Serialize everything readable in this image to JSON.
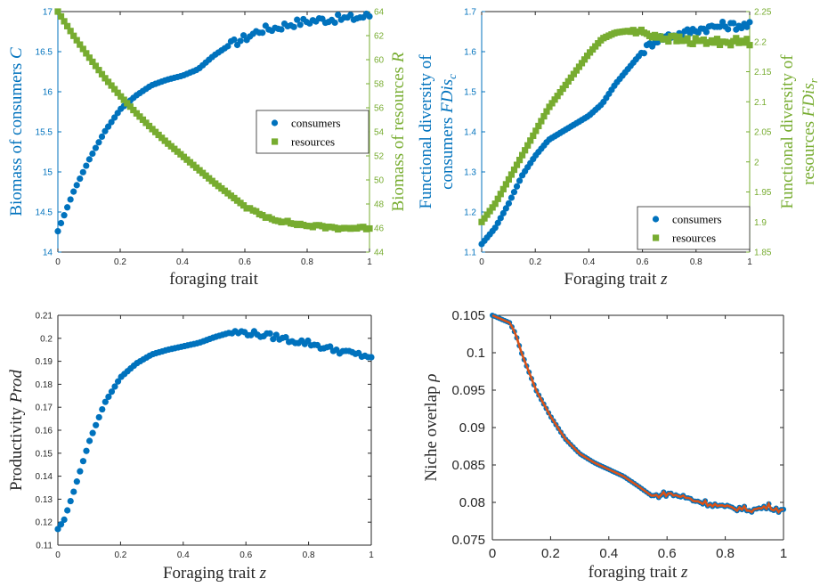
{
  "colors": {
    "consumers": "#0072BD",
    "resources": "#77AC30",
    "overlap_line": "#D95319",
    "axis_dark": "#262626"
  },
  "chart_data": [
    {
      "id": "biomass",
      "type": "scatter",
      "xlabel": "foraging trait",
      "ylabel_left": "Biomass of consumers C",
      "ylabel_right": "Biomass of resources R",
      "xlim": [
        0,
        1
      ],
      "ylim_left": [
        14,
        17
      ],
      "ylim_right": [
        44,
        64
      ],
      "x_ticks": [
        "0",
        "0.2",
        "0.4",
        "0.6",
        "0.8",
        "1"
      ],
      "y_ticks_left": [
        "14",
        "14.5",
        "15",
        "15.5",
        "16",
        "16.5",
        "17"
      ],
      "y_ticks_right": [
        "44",
        "46",
        "48",
        "50",
        "52",
        "54",
        "56",
        "58",
        "60",
        "62",
        "64"
      ],
      "legend": {
        "position": "right-middle",
        "entries": [
          "consumers",
          "resources"
        ]
      },
      "series": [
        {
          "name": "consumers",
          "axis": "left",
          "marker": "circle",
          "keypoints": [
            [
              0,
              14.26
            ],
            [
              0.01,
              14.36
            ],
            [
              0.05,
              14.75
            ],
            [
              0.1,
              15.15
            ],
            [
              0.15,
              15.5
            ],
            [
              0.2,
              15.78
            ],
            [
              0.25,
              15.95
            ],
            [
              0.3,
              16.08
            ],
            [
              0.35,
              16.15
            ],
            [
              0.4,
              16.2
            ],
            [
              0.45,
              16.28
            ],
            [
              0.5,
              16.45
            ],
            [
              0.55,
              16.58
            ],
            [
              0.6,
              16.67
            ],
            [
              0.65,
              16.77
            ],
            [
              0.7,
              16.8
            ],
            [
              0.75,
              16.85
            ],
            [
              0.8,
              16.88
            ],
            [
              0.85,
              16.9
            ],
            [
              0.9,
              16.91
            ],
            [
              0.95,
              16.92
            ],
            [
              1,
              16.95
            ]
          ],
          "noise": 0.05,
          "noise_from": 0.55
        },
        {
          "name": "resources",
          "axis": "right",
          "marker": "square",
          "keypoints": [
            [
              0,
              64
            ],
            [
              0.05,
              62
            ],
            [
              0.1,
              60.2
            ],
            [
              0.15,
              58.5
            ],
            [
              0.2,
              57
            ],
            [
              0.25,
              55.6
            ],
            [
              0.3,
              54.3
            ],
            [
              0.35,
              53.1
            ],
            [
              0.4,
              52
            ],
            [
              0.45,
              50.9
            ],
            [
              0.5,
              49.8
            ],
            [
              0.55,
              48.8
            ],
            [
              0.6,
              47.8
            ],
            [
              0.65,
              47.1
            ],
            [
              0.7,
              46.7
            ],
            [
              0.75,
              46.4
            ],
            [
              0.8,
              46.2
            ],
            [
              0.85,
              46.1
            ],
            [
              0.9,
              46
            ],
            [
              1,
              46
            ]
          ],
          "noise": 0.12,
          "noise_from": 0.6
        }
      ]
    },
    {
      "id": "functional-diversity",
      "type": "scatter",
      "xlabel": "Foraging trait z",
      "ylabel_left": [
        "Functional diversity of",
        "consumers FDis_c"
      ],
      "ylabel_right": [
        "Functional diversity of",
        "resources FDis_r"
      ],
      "xlim": [
        0,
        1
      ],
      "ylim_left": [
        1.1,
        1.7
      ],
      "ylim_right": [
        1.85,
        2.25
      ],
      "x_ticks": [
        "0",
        "0.2",
        "0.4",
        "0.6",
        "0.8",
        "1"
      ],
      "y_ticks_left": [
        "1.1",
        "1.2",
        "1.3",
        "1.4",
        "1.5",
        "1.6",
        "1.7"
      ],
      "y_ticks_right": [
        "1.85",
        "1.9",
        "1.95",
        "2",
        "2.05",
        "2.1",
        "2.15",
        "2.2",
        "2.25"
      ],
      "legend": {
        "position": "bottom-right",
        "entries": [
          "consumers",
          "resources"
        ]
      },
      "series": [
        {
          "name": "consumers",
          "axis": "left",
          "marker": "circle",
          "keypoints": [
            [
              0,
              1.12
            ],
            [
              0.05,
              1.16
            ],
            [
              0.1,
              1.22
            ],
            [
              0.15,
              1.29
            ],
            [
              0.2,
              1.34
            ],
            [
              0.25,
              1.38
            ],
            [
              0.3,
              1.4
            ],
            [
              0.35,
              1.42
            ],
            [
              0.4,
              1.44
            ],
            [
              0.45,
              1.47
            ],
            [
              0.5,
              1.52
            ],
            [
              0.55,
              1.56
            ],
            [
              0.6,
              1.6
            ],
            [
              0.65,
              1.63
            ],
            [
              0.7,
              1.64
            ],
            [
              0.75,
              1.645
            ],
            [
              0.8,
              1.655
            ],
            [
              0.85,
              1.66
            ],
            [
              0.9,
              1.665
            ],
            [
              1,
              1.665
            ]
          ],
          "noise": 0.01,
          "noise_from": 0.6
        },
        {
          "name": "resources",
          "axis": "right",
          "marker": "square",
          "keypoints": [
            [
              0,
              1.9
            ],
            [
              0.05,
              1.93
            ],
            [
              0.1,
              1.97
            ],
            [
              0.15,
              2.01
            ],
            [
              0.2,
              2.05
            ],
            [
              0.25,
              2.09
            ],
            [
              0.3,
              2.12
            ],
            [
              0.35,
              2.15
            ],
            [
              0.4,
              2.18
            ],
            [
              0.45,
              2.205
            ],
            [
              0.5,
              2.215
            ],
            [
              0.55,
              2.218
            ],
            [
              0.6,
              2.215
            ],
            [
              0.65,
              2.21
            ],
            [
              0.7,
              2.205
            ],
            [
              0.8,
              2.2
            ],
            [
              0.9,
              2.2
            ],
            [
              1,
              2.2
            ]
          ],
          "noise": 0.006,
          "noise_from": 0.55
        }
      ]
    },
    {
      "id": "productivity",
      "type": "scatter",
      "xlabel": "Foraging trait z",
      "ylabel_left": "Productivity Prod",
      "xlim": [
        0,
        1
      ],
      "ylim_left": [
        0.11,
        0.21
      ],
      "x_ticks": [
        "0",
        "0.2",
        "0.4",
        "0.6",
        "0.8",
        "1"
      ],
      "y_ticks_left": [
        "0.11",
        "0.12",
        "0.13",
        "0.14",
        "0.15",
        "0.16",
        "0.17",
        "0.18",
        "0.19",
        "0.2",
        "0.21"
      ],
      "series": [
        {
          "name": "productivity",
          "axis": "left",
          "marker": "circle",
          "keypoints": [
            [
              0,
              0.117
            ],
            [
              0.02,
              0.121
            ],
            [
              0.05,
              0.133
            ],
            [
              0.1,
              0.155
            ],
            [
              0.15,
              0.172
            ],
            [
              0.2,
              0.183
            ],
            [
              0.25,
              0.189
            ],
            [
              0.3,
              0.193
            ],
            [
              0.35,
              0.195
            ],
            [
              0.4,
              0.1965
            ],
            [
              0.45,
              0.198
            ],
            [
              0.5,
              0.2005
            ],
            [
              0.55,
              0.2025
            ],
            [
              0.6,
              0.2025
            ],
            [
              0.65,
              0.2015
            ],
            [
              0.7,
              0.2005
            ],
            [
              0.75,
              0.199
            ],
            [
              0.8,
              0.198
            ],
            [
              0.85,
              0.196
            ],
            [
              0.9,
              0.1945
            ],
            [
              0.95,
              0.193
            ],
            [
              1,
              0.192
            ]
          ],
          "noise": 0.0012,
          "noise_from": 0.55
        }
      ]
    },
    {
      "id": "niche-overlap",
      "type": "line",
      "xlabel": "foraging trait z",
      "ylabel_left": "Niche overlap ρ",
      "xlim": [
        0,
        1
      ],
      "ylim_left": [
        0.075,
        0.105
      ],
      "x_ticks": [
        "0",
        "0.2",
        "0.4",
        "0.6",
        "0.8",
        "1"
      ],
      "y_ticks_left": [
        "0.075",
        "0.08",
        "0.085",
        "0.09",
        "0.095",
        "0.1",
        "0.105"
      ],
      "series": [
        {
          "name": "niche overlap",
          "axis": "left",
          "marker": "circle+line",
          "keypoints": [
            [
              0,
              0.105
            ],
            [
              0.03,
              0.1045
            ],
            [
              0.06,
              0.104
            ],
            [
              0.08,
              0.1025
            ],
            [
              0.1,
              0.1
            ],
            [
              0.15,
              0.095
            ],
            [
              0.2,
              0.0915
            ],
            [
              0.25,
              0.0885
            ],
            [
              0.3,
              0.0865
            ],
            [
              0.35,
              0.0853
            ],
            [
              0.4,
              0.0844
            ],
            [
              0.45,
              0.0835
            ],
            [
              0.5,
              0.0822
            ],
            [
              0.55,
              0.0808
            ],
            [
              0.6,
              0.0812
            ],
            [
              0.65,
              0.0808
            ],
            [
              0.7,
              0.0802
            ],
            [
              0.75,
              0.0798
            ],
            [
              0.8,
              0.0793
            ],
            [
              0.85,
              0.0792
            ],
            [
              0.9,
              0.079
            ],
            [
              0.95,
              0.0795
            ],
            [
              1,
              0.0788
            ]
          ],
          "noise": 0.00035,
          "noise_from": 0.55
        }
      ]
    }
  ]
}
